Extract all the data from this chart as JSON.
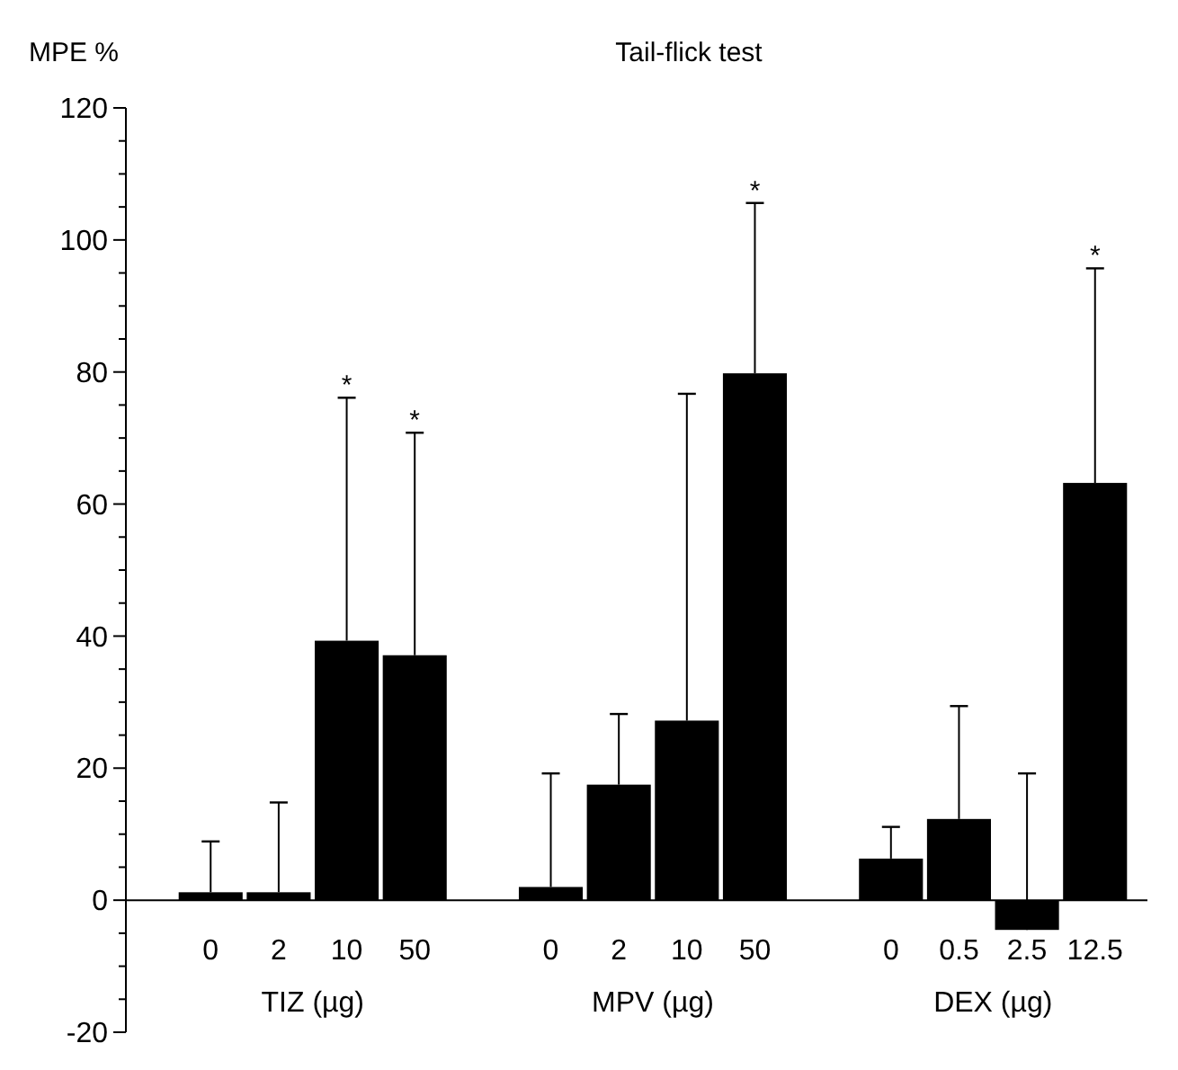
{
  "chart_data": {
    "type": "bar",
    "title": "Tail-flick test",
    "ylabel": "MPE %",
    "categories": [
      "0",
      "2",
      "10",
      "50",
      null,
      "0",
      "2",
      "10",
      "50",
      null,
      "0",
      "0.5",
      "2.5",
      "12.5"
    ],
    "values": [
      1.2,
      1.2,
      39.3,
      37.1,
      null,
      2.0,
      17.5,
      27.2,
      79.8,
      null,
      6.3,
      12.3,
      -4.5,
      63.2
    ],
    "errors": [
      [
        1.2,
        8.9
      ],
      [
        1.2,
        14.8
      ],
      [
        39.3,
        76.1
      ],
      [
        37.1,
        70.8
      ],
      null,
      [
        2.0,
        19.2
      ],
      [
        17.5,
        28.2
      ],
      [
        27.2,
        76.7
      ],
      [
        79.8,
        105.6
      ],
      null,
      [
        6.3,
        11.1
      ],
      [
        12.3,
        29.4
      ],
      [
        -4.5,
        19.2
      ],
      [
        63.2,
        95.7
      ]
    ],
    "color": "#000000",
    "ylim": [
      -20,
      120
    ],
    "yticks": [
      -20,
      {
        "value": -15,
        "label": null
      },
      {
        "value": -10,
        "label": null
      },
      {
        "value": -5,
        "label": null
      },
      0,
      {
        "value": 5,
        "label": null
      },
      {
        "value": 10,
        "label": null
      },
      {
        "value": 15,
        "label": null
      },
      20,
      {
        "value": 25,
        "label": null
      },
      {
        "value": 30,
        "label": null
      },
      {
        "value": 35,
        "label": null
      },
      40,
      {
        "value": 45,
        "label": null
      },
      {
        "value": 50,
        "label": null
      },
      {
        "value": 55,
        "label": null
      },
      60,
      {
        "value": 65,
        "label": null
      },
      {
        "value": 70,
        "label": null
      },
      {
        "value": 75,
        "label": null
      },
      80,
      {
        "value": 85,
        "label": null
      },
      {
        "value": 90,
        "label": null
      },
      {
        "value": 95,
        "label": null
      },
      100,
      {
        "value": 105,
        "label": null
      },
      {
        "value": 110,
        "label": null
      },
      {
        "value": 115,
        "label": null
      },
      120
    ],
    "annotations": [
      "TIZ (µg)",
      "MPV (µg)",
      "DEX (µg)",
      "*",
      "*",
      "*",
      "*"
    ]
  }
}
